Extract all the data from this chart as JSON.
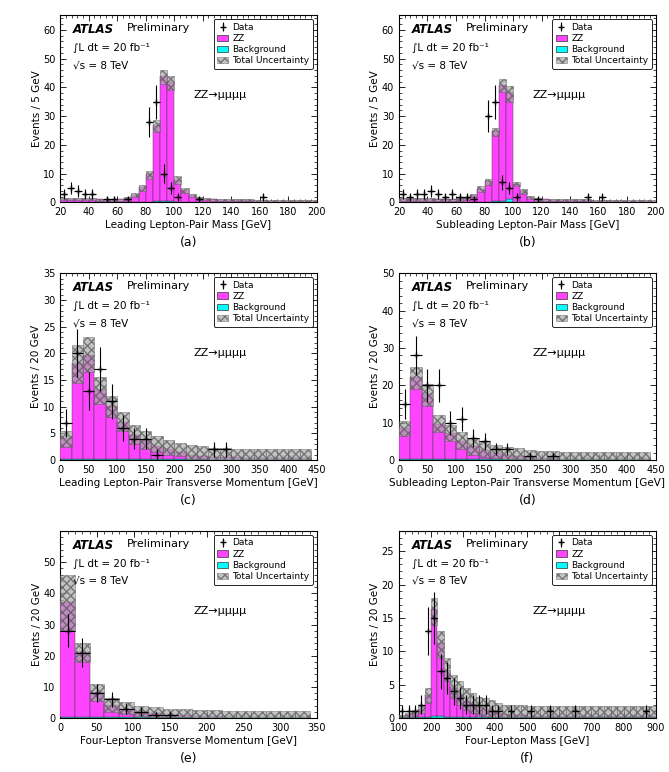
{
  "plots": [
    {
      "label": "(a)",
      "xlabel": "Leading Lepton-Pair Mass [GeV]",
      "ylabel": "Events / 5 GeV",
      "xlim": [
        20,
        200
      ],
      "ylim": [
        0,
        65
      ],
      "yticks": [
        0,
        10,
        20,
        30,
        40,
        50,
        60
      ],
      "xticks": [
        20,
        40,
        60,
        80,
        100,
        120,
        140,
        160,
        180,
        200
      ],
      "bin_width": 5,
      "zz_annotation": "ZZ→μμμμ",
      "ann_x": 0.52,
      "ann_y": 0.6,
      "zz_bins": [
        20,
        25,
        30,
        35,
        40,
        45,
        50,
        55,
        60,
        65,
        70,
        75,
        80,
        85,
        90,
        95,
        100,
        105,
        110,
        115,
        120,
        125,
        130,
        135,
        140,
        145,
        150,
        155,
        160,
        165,
        170,
        175,
        180,
        185,
        190,
        195
      ],
      "zz_vals": [
        1.0,
        1.0,
        1.0,
        1.0,
        1.0,
        0.8,
        0.7,
        0.7,
        0.8,
        1.2,
        2.5,
        5.0,
        9.5,
        26.5,
        43.5,
        41.5,
        7.5,
        4.0,
        2.2,
        1.2,
        1.0,
        0.8,
        0.7,
        0.7,
        0.7,
        0.7,
        0.7,
        0.4,
        0.4,
        0.4,
        0.4,
        0.4,
        0.4,
        0.4,
        0.4,
        0.4
      ],
      "bg_vals": [
        0.2,
        0.2,
        0.2,
        0.2,
        0.2,
        0.2,
        0.2,
        0.2,
        0.2,
        0.2,
        0.2,
        0.2,
        0.2,
        0.3,
        0.3,
        0.3,
        0.2,
        0.2,
        0.2,
        0.2,
        0.2,
        0.2,
        0.2,
        0.2,
        0.2,
        0.2,
        0.2,
        0.2,
        0.2,
        0.2,
        0.2,
        0.2,
        0.2,
        0.2,
        0.2,
        0.2
      ],
      "unc_hi": [
        1.5,
        1.5,
        1.5,
        1.5,
        1.5,
        1.3,
        1.0,
        1.0,
        1.3,
        1.8,
        3.3,
        6.0,
        11.0,
        28.5,
        46.0,
        44.0,
        9.0,
        5.0,
        2.8,
        1.8,
        1.5,
        1.3,
        1.0,
        1.0,
        1.0,
        1.0,
        1.0,
        0.8,
        0.8,
        0.8,
        0.8,
        0.8,
        0.8,
        0.8,
        0.8,
        0.8
      ],
      "unc_lo": [
        0.7,
        0.7,
        0.7,
        0.7,
        0.7,
        0.5,
        0.4,
        0.4,
        0.5,
        0.8,
        1.8,
        4.0,
        8.0,
        24.5,
        41.0,
        39.0,
        6.5,
        3.2,
        1.8,
        0.8,
        0.7,
        0.5,
        0.4,
        0.4,
        0.4,
        0.4,
        0.4,
        0.2,
        0.2,
        0.2,
        0.2,
        0.2,
        0.2,
        0.2,
        0.2,
        0.2
      ],
      "data_x": [
        22.5,
        27.5,
        32.5,
        37.5,
        42.5,
        52.5,
        57.5,
        67.5,
        82.5,
        87.5,
        92.5,
        97.5,
        102.5,
        117.5,
        162.5
      ],
      "data_y": [
        3,
        5,
        4,
        3,
        3,
        1,
        1,
        1,
        28,
        35,
        10,
        5,
        2,
        1,
        2
      ],
      "data_yerr": [
        1.7,
        2.2,
        2.0,
        1.7,
        1.7,
        1.0,
        1.0,
        1.0,
        5.3,
        5.9,
        3.2,
        2.2,
        1.4,
        1.0,
        1.4
      ],
      "data_xerr": 2.5
    },
    {
      "label": "(b)",
      "xlabel": "Subleading Lepton-Pair Mass [GeV]",
      "ylabel": "Events / 5 GeV",
      "xlim": [
        20,
        200
      ],
      "ylim": [
        0,
        65
      ],
      "yticks": [
        0,
        10,
        20,
        30,
        40,
        50,
        60
      ],
      "xticks": [
        20,
        40,
        60,
        80,
        100,
        120,
        140,
        160,
        180,
        200
      ],
      "bin_width": 5,
      "zz_annotation": "ZZ→μμμμ",
      "ann_x": 0.52,
      "ann_y": 0.6,
      "zz_bins": [
        20,
        25,
        30,
        35,
        40,
        45,
        50,
        55,
        60,
        65,
        70,
        75,
        80,
        85,
        90,
        95,
        100,
        105,
        110,
        115,
        120,
        125,
        130,
        135,
        140,
        145,
        150,
        155,
        160,
        165,
        170,
        175,
        180,
        185,
        190,
        195
      ],
      "zz_vals": [
        1.0,
        1.0,
        1.0,
        1.0,
        1.0,
        0.8,
        0.8,
        0.8,
        1.0,
        1.2,
        2.2,
        4.5,
        7.2,
        24.5,
        40.5,
        37.5,
        6.2,
        3.7,
        1.7,
        1.0,
        0.8,
        0.6,
        0.6,
        0.6,
        0.6,
        0.6,
        0.6,
        0.4,
        0.4,
        0.4,
        0.4,
        0.4,
        0.4,
        0.4,
        0.4,
        0.4
      ],
      "bg_vals": [
        0.2,
        0.2,
        0.2,
        0.2,
        0.2,
        0.2,
        0.2,
        0.2,
        0.2,
        0.2,
        0.2,
        0.2,
        0.2,
        0.3,
        0.3,
        1.0,
        0.2,
        0.2,
        0.2,
        0.2,
        0.2,
        0.2,
        0.2,
        0.2,
        0.2,
        0.2,
        0.2,
        0.2,
        0.2,
        0.2,
        0.2,
        0.2,
        0.2,
        0.2,
        0.2,
        0.2
      ],
      "unc_hi": [
        1.5,
        1.5,
        1.5,
        1.5,
        1.5,
        1.3,
        1.3,
        1.3,
        1.5,
        1.8,
        2.8,
        5.5,
        8.0,
        26.0,
        43.0,
        40.5,
        7.0,
        4.5,
        2.3,
        1.5,
        1.3,
        1.0,
        1.0,
        1.0,
        1.0,
        1.0,
        1.0,
        0.8,
        0.8,
        0.8,
        0.8,
        0.8,
        0.8,
        0.8,
        0.8,
        0.8
      ],
      "unc_lo": [
        0.5,
        0.5,
        0.5,
        0.5,
        0.5,
        0.4,
        0.4,
        0.4,
        0.5,
        0.7,
        1.7,
        3.5,
        6.0,
        23.0,
        38.5,
        35.0,
        5.5,
        3.0,
        1.3,
        0.5,
        0.4,
        0.3,
        0.3,
        0.3,
        0.3,
        0.3,
        0.3,
        0.2,
        0.2,
        0.2,
        0.2,
        0.2,
        0.2,
        0.2,
        0.2,
        0.2
      ],
      "data_x": [
        22.5,
        27.5,
        32.5,
        37.5,
        42.5,
        47.5,
        52.5,
        57.5,
        62.5,
        67.5,
        72.5,
        82.5,
        87.5,
        92.5,
        97.5,
        102.5,
        117.5,
        152.5,
        162.5
      ],
      "data_y": [
        3,
        2,
        3,
        3,
        4,
        3,
        2,
        3,
        2,
        2,
        1,
        30,
        35,
        7,
        5,
        2,
        1,
        2,
        2
      ],
      "data_yerr": [
        1.7,
        1.4,
        1.7,
        1.7,
        2.0,
        1.7,
        1.4,
        1.7,
        1.4,
        1.4,
        1.0,
        5.5,
        5.9,
        2.6,
        2.2,
        1.4,
        1.0,
        1.4,
        1.4
      ],
      "data_xerr": 2.5
    },
    {
      "label": "(c)",
      "xlabel": "Leading Lepton-Pair Transverse Momentum [GeV]",
      "ylabel": "Events / 20 GeV",
      "xlim": [
        0,
        450
      ],
      "ylim": [
        0,
        35
      ],
      "yticks": [
        0,
        5,
        10,
        15,
        20,
        25,
        30,
        35
      ],
      "xticks": [
        0,
        50,
        100,
        150,
        200,
        250,
        300,
        350,
        400,
        450
      ],
      "bin_width": 20,
      "zz_annotation": "ZZ→μμμμ",
      "ann_x": 0.52,
      "ann_y": 0.6,
      "zz_bins": [
        0,
        20,
        40,
        60,
        80,
        100,
        120,
        140,
        160,
        180,
        200,
        220,
        240,
        260,
        280,
        300,
        320,
        340,
        360,
        380,
        400,
        420
      ],
      "zz_vals": [
        4.0,
        18.0,
        19.5,
        13.0,
        10.0,
        7.0,
        4.5,
        3.5,
        2.5,
        1.8,
        1.3,
        0.8,
        0.6,
        0.4,
        0.4,
        0.3,
        0.2,
        0.2,
        0.2,
        0.2,
        0.2,
        0.2
      ],
      "bg_vals": [
        0.2,
        0.2,
        0.2,
        0.2,
        0.2,
        0.2,
        0.2,
        0.2,
        0.2,
        0.2,
        0.2,
        0.2,
        0.2,
        0.2,
        0.2,
        0.2,
        0.2,
        0.2,
        0.2,
        0.2,
        0.2,
        0.2
      ],
      "unc_hi": [
        5.5,
        21.5,
        23.0,
        15.5,
        12.0,
        9.0,
        6.5,
        5.5,
        4.5,
        3.8,
        3.3,
        2.8,
        2.6,
        2.3,
        2.3,
        2.1,
        2.1,
        2.1,
        2.1,
        2.1,
        2.0,
        2.0
      ],
      "unc_lo": [
        2.5,
        14.5,
        16.5,
        10.5,
        8.0,
        5.5,
        3.0,
        2.0,
        1.5,
        1.0,
        0.7,
        0.3,
        0.2,
        0.1,
        0.1,
        0.1,
        0.1,
        0.1,
        0.1,
        0.1,
        0.1,
        0.1
      ],
      "data_x": [
        10,
        30,
        50,
        70,
        90,
        110,
        130,
        150,
        170,
        270,
        290
      ],
      "data_y": [
        7,
        20,
        13,
        17,
        11,
        6,
        4,
        4,
        1,
        2,
        2
      ],
      "data_yerr": [
        2.6,
        4.5,
        3.6,
        4.1,
        3.3,
        2.4,
        2.0,
        2.0,
        1.0,
        1.4,
        1.4
      ],
      "data_xerr": 10
    },
    {
      "label": "(d)",
      "xlabel": "Subleading Lepton-Pair Transverse Momentum [GeV]",
      "ylabel": "Events / 20 GeV",
      "xlim": [
        0,
        450
      ],
      "ylim": [
        0,
        50
      ],
      "yticks": [
        0,
        10,
        20,
        30,
        40,
        50
      ],
      "xticks": [
        0,
        50,
        100,
        150,
        200,
        250,
        300,
        350,
        400,
        450
      ],
      "bin_width": 20,
      "zz_annotation": "ZZ→μμμμ",
      "ann_x": 0.52,
      "ann_y": 0.6,
      "zz_bins": [
        0,
        20,
        40,
        60,
        80,
        100,
        120,
        140,
        160,
        180,
        200,
        220,
        240,
        260,
        280,
        300,
        320,
        340,
        360,
        380,
        400,
        420
      ],
      "zz_vals": [
        8.5,
        22.0,
        17.5,
        9.5,
        7.0,
        5.0,
        3.5,
        2.5,
        1.8,
        1.2,
        1.0,
        0.6,
        0.4,
        0.4,
        0.2,
        0.2,
        0.2,
        0.2,
        0.2,
        0.2,
        0.2,
        0.2
      ],
      "bg_vals": [
        0.2,
        0.2,
        0.2,
        0.2,
        0.2,
        0.2,
        0.2,
        0.2,
        0.2,
        0.2,
        0.2,
        0.2,
        0.2,
        0.2,
        0.2,
        0.2,
        0.2,
        0.2,
        0.2,
        0.2,
        0.2,
        0.2
      ],
      "unc_hi": [
        10.5,
        25.0,
        20.5,
        12.0,
        9.5,
        7.5,
        6.0,
        5.0,
        4.0,
        3.5,
        3.2,
        2.8,
        2.5,
        2.5,
        2.3,
        2.3,
        2.3,
        2.3,
        2.3,
        2.3,
        2.2,
        2.2
      ],
      "unc_lo": [
        6.5,
        19.0,
        14.5,
        7.5,
        5.0,
        3.0,
        1.5,
        0.8,
        0.5,
        0.2,
        0.2,
        0.1,
        0.1,
        0.1,
        0.1,
        0.1,
        0.1,
        0.1,
        0.1,
        0.1,
        0.1,
        0.1
      ],
      "data_x": [
        10,
        30,
        50,
        70,
        90,
        110,
        130,
        150,
        170,
        190,
        230,
        270
      ],
      "data_y": [
        15,
        28,
        20,
        20,
        10,
        11,
        6,
        5,
        3,
        3,
        1,
        1
      ],
      "data_yerr": [
        3.9,
        5.3,
        4.5,
        4.5,
        3.2,
        3.3,
        2.4,
        2.2,
        1.7,
        1.7,
        1.0,
        1.0
      ],
      "data_xerr": 10
    },
    {
      "label": "(e)",
      "xlabel": "Four-Lepton Transverse Momentum [GeV]",
      "ylabel": "Events / 20 GeV",
      "xlim": [
        0,
        350
      ],
      "ylim": [
        0,
        60
      ],
      "yticks": [
        0,
        10,
        20,
        30,
        40,
        50
      ],
      "xticks": [
        0,
        50,
        100,
        150,
        200,
        250,
        300,
        350
      ],
      "bin_width": 20,
      "zz_annotation": "ZZ→μμμμ",
      "ann_x": 0.52,
      "ann_y": 0.6,
      "zz_bins": [
        0,
        20,
        40,
        60,
        80,
        100,
        120,
        140,
        160,
        180,
        200,
        220,
        240,
        260,
        280,
        300,
        320
      ],
      "zz_vals": [
        37.0,
        21.0,
        8.0,
        4.0,
        2.8,
        1.8,
        1.3,
        0.8,
        0.6,
        0.4,
        0.4,
        0.2,
        0.2,
        0.2,
        0.2,
        0.2,
        0.2
      ],
      "bg_vals": [
        0.2,
        0.2,
        0.2,
        0.2,
        0.2,
        0.2,
        0.2,
        0.2,
        0.2,
        0.2,
        0.2,
        0.2,
        0.2,
        0.2,
        0.2,
        0.2,
        0.2
      ],
      "unc_hi": [
        46.0,
        24.0,
        11.0,
        6.5,
        5.0,
        4.0,
        3.5,
        3.0,
        2.8,
        2.5,
        2.5,
        2.3,
        2.3,
        2.3,
        2.3,
        2.3,
        2.3
      ],
      "unc_lo": [
        28.0,
        18.0,
        5.5,
        2.0,
        1.2,
        0.5,
        0.3,
        0.2,
        0.2,
        0.1,
        0.1,
        0.1,
        0.1,
        0.1,
        0.1,
        0.1,
        0.1
      ],
      "data_x": [
        10,
        30,
        50,
        70,
        90,
        110,
        130,
        150
      ],
      "data_y": [
        28,
        21,
        8,
        6,
        3,
        2,
        1,
        1
      ],
      "data_yerr": [
        5.3,
        4.6,
        2.8,
        2.4,
        1.7,
        1.4,
        1.0,
        1.0
      ],
      "data_xerr": 10
    },
    {
      "label": "(f)",
      "xlabel": "Four-Lepton Mass [GeV]",
      "ylabel": "Events / 20 GeV",
      "xlim": [
        100,
        900
      ],
      "ylim": [
        0,
        28
      ],
      "yticks": [
        0,
        5,
        10,
        15,
        20,
        25
      ],
      "xticks": [
        100,
        200,
        300,
        400,
        500,
        600,
        700,
        800,
        900
      ],
      "bin_width": 20,
      "zz_annotation": "ZZ→μμμμ",
      "ann_x": 0.52,
      "ann_y": 0.6,
      "zz_bins": [
        100,
        120,
        140,
        160,
        180,
        200,
        220,
        240,
        260,
        280,
        300,
        320,
        340,
        360,
        380,
        400,
        420,
        440,
        460,
        480,
        500,
        520,
        540,
        560,
        580,
        600,
        620,
        640,
        660,
        680,
        700,
        720,
        740,
        760,
        780,
        800,
        820,
        840,
        860,
        880
      ],
      "zz_vals": [
        0.2,
        0.3,
        0.8,
        1.3,
        3.3,
        16.0,
        11.0,
        7.0,
        4.5,
        3.5,
        2.5,
        2.0,
        1.5,
        1.2,
        1.0,
        0.7,
        0.5,
        0.4,
        0.3,
        0.3,
        0.2,
        0.2,
        0.2,
        0.2,
        0.2,
        0.2,
        0.2,
        0.2,
        0.2,
        0.2,
        0.2,
        0.2,
        0.2,
        0.2,
        0.2,
        0.2,
        0.2,
        0.2,
        0.2,
        0.2
      ],
      "bg_vals": [
        0.1,
        0.1,
        0.1,
        0.1,
        0.1,
        0.3,
        0.3,
        0.2,
        0.1,
        0.1,
        0.1,
        0.1,
        0.1,
        0.1,
        0.1,
        0.1,
        0.1,
        0.1,
        0.1,
        0.1,
        0.1,
        0.1,
        0.1,
        0.1,
        0.1,
        0.1,
        0.1,
        0.1,
        0.1,
        0.1,
        0.1,
        0.1,
        0.1,
        0.1,
        0.1,
        0.1,
        0.1,
        0.1,
        0.1,
        0.1
      ],
      "unc_hi": [
        0.5,
        0.7,
        1.2,
        1.8,
        4.5,
        18.0,
        13.0,
        9.0,
        6.5,
        5.5,
        4.5,
        3.8,
        3.2,
        3.0,
        2.7,
        2.3,
        2.0,
        2.0,
        1.9,
        1.9,
        1.8,
        1.8,
        1.8,
        1.8,
        1.8,
        1.8,
        1.8,
        1.8,
        1.8,
        1.8,
        1.8,
        1.8,
        1.8,
        1.8,
        1.8,
        1.8,
        1.8,
        1.8,
        1.8,
        1.8
      ],
      "unc_lo": [
        0.1,
        0.1,
        0.4,
        0.7,
        2.2,
        14.0,
        9.0,
        5.5,
        3.0,
        2.0,
        1.2,
        0.8,
        0.5,
        0.3,
        0.2,
        0.2,
        0.2,
        0.2,
        0.1,
        0.1,
        0.1,
        0.1,
        0.1,
        0.1,
        0.1,
        0.1,
        0.1,
        0.1,
        0.1,
        0.1,
        0.1,
        0.1,
        0.1,
        0.1,
        0.1,
        0.1,
        0.1,
        0.1,
        0.1,
        0.1
      ],
      "data_x": [
        110,
        130,
        150,
        170,
        190,
        210,
        230,
        250,
        270,
        290,
        310,
        330,
        350,
        370,
        390,
        410,
        450,
        510,
        570,
        650,
        870
      ],
      "data_y": [
        1,
        1,
        1,
        2,
        13,
        15,
        7,
        6,
        4,
        3,
        2,
        2,
        2,
        2,
        1,
        1,
        1,
        1,
        1,
        1,
        1
      ],
      "data_yerr": [
        1.0,
        1.0,
        1.0,
        1.4,
        3.6,
        3.9,
        2.6,
        2.4,
        2.0,
        1.7,
        1.4,
        1.4,
        1.4,
        1.4,
        1.0,
        1.0,
        1.0,
        1.0,
        1.0,
        1.0,
        1.0
      ],
      "data_xerr": 10
    }
  ],
  "zz_color": "#FF44FF",
  "bg_color": "#00FFFF",
  "unc_color": "#aaaaaa",
  "unc_alpha": 0.7,
  "atlas_text": "ATLAS",
  "prelim_text": "Preliminary",
  "lumi_text": "∫L dt = 20 fb⁻¹",
  "energy_text": "√s = 8 TeV"
}
